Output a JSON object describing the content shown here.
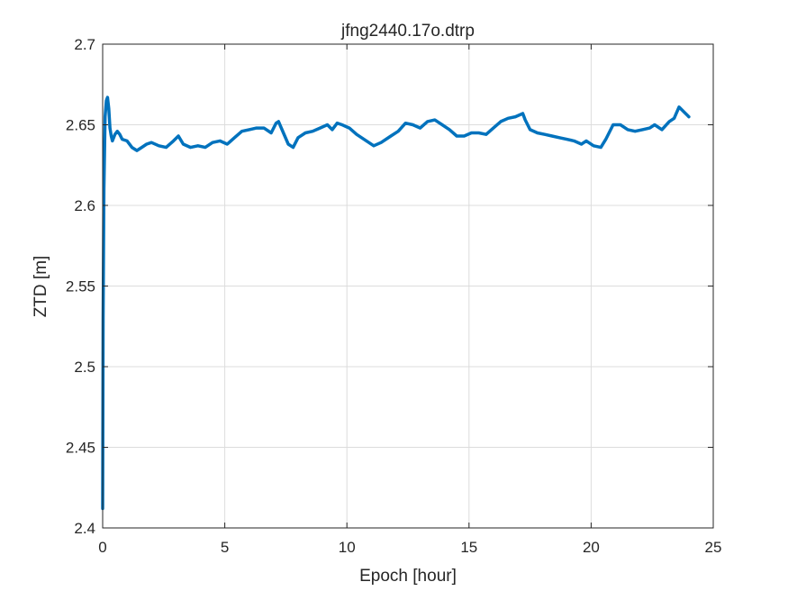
{
  "chart_data": {
    "type": "line",
    "title": "jfng2440.17o.dtrp",
    "xlabel": "Epoch [hour]",
    "ylabel": "ZTD [m]",
    "xlim": [
      0,
      25
    ],
    "ylim": [
      2.4,
      2.7
    ],
    "xticks": [
      0,
      5,
      10,
      15,
      20,
      25
    ],
    "yticks": [
      2.4,
      2.45,
      2.5,
      2.55,
      2.6,
      2.65,
      2.7
    ],
    "xtick_labels": [
      "0",
      "5",
      "10",
      "15",
      "20",
      "25"
    ],
    "ytick_labels": [
      "2.4",
      "2.45",
      "2.5",
      "2.55",
      "2.6",
      "2.65",
      "2.7"
    ],
    "grid": true,
    "series_color": "#0072bd",
    "series": [
      {
        "x": [
          0.0,
          0.02,
          0.05,
          0.1,
          0.15,
          0.2,
          0.25,
          0.3,
          0.35,
          0.4,
          0.5,
          0.6,
          0.7,
          0.8,
          1.0,
          1.2,
          1.4,
          1.6,
          1.8,
          2.0,
          2.3,
          2.6,
          2.9,
          3.1,
          3.3,
          3.6,
          3.9,
          4.2,
          4.5,
          4.8,
          5.1,
          5.4,
          5.7,
          6.0,
          6.3,
          6.6,
          6.9,
          7.1,
          7.2,
          7.4,
          7.6,
          7.8,
          8.0,
          8.3,
          8.6,
          8.9,
          9.2,
          9.4,
          9.6,
          9.8,
          10.1,
          10.4,
          10.8,
          11.1,
          11.4,
          11.8,
          12.1,
          12.4,
          12.7,
          13.0,
          13.3,
          13.6,
          13.9,
          14.2,
          14.5,
          14.8,
          15.1,
          15.4,
          15.7,
          16.0,
          16.3,
          16.6,
          16.9,
          17.2,
          17.3,
          17.5,
          17.8,
          18.1,
          18.4,
          18.7,
          19.0,
          19.3,
          19.6,
          19.8,
          20.1,
          20.4,
          20.6,
          20.9,
          21.2,
          21.5,
          21.8,
          22.1,
          22.4,
          22.6,
          22.9,
          23.2,
          23.4,
          23.6,
          23.8,
          24.0
        ],
        "y": [
          2.412,
          2.53,
          2.61,
          2.655,
          2.665,
          2.667,
          2.66,
          2.648,
          2.643,
          2.64,
          2.644,
          2.646,
          2.644,
          2.641,
          2.64,
          2.636,
          2.634,
          2.636,
          2.638,
          2.639,
          2.637,
          2.636,
          2.64,
          2.643,
          2.638,
          2.636,
          2.637,
          2.636,
          2.639,
          2.64,
          2.638,
          2.642,
          2.646,
          2.647,
          2.648,
          2.648,
          2.645,
          2.651,
          2.652,
          2.645,
          2.638,
          2.636,
          2.642,
          2.645,
          2.646,
          2.648,
          2.65,
          2.647,
          2.651,
          2.65,
          2.648,
          2.644,
          2.64,
          2.637,
          2.639,
          2.643,
          2.646,
          2.651,
          2.65,
          2.648,
          2.652,
          2.653,
          2.65,
          2.647,
          2.643,
          2.643,
          2.645,
          2.645,
          2.644,
          2.648,
          2.652,
          2.654,
          2.655,
          2.657,
          2.653,
          2.647,
          2.645,
          2.644,
          2.643,
          2.642,
          2.641,
          2.64,
          2.638,
          2.64,
          2.637,
          2.636,
          2.641,
          2.65,
          2.65,
          2.647,
          2.646,
          2.647,
          2.648,
          2.65,
          2.647,
          2.652,
          2.654,
          2.661,
          2.658,
          2.655
        ]
      }
    ]
  }
}
